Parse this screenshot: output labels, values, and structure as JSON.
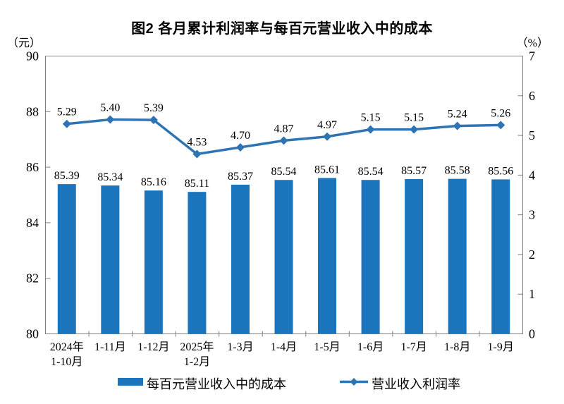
{
  "title": "图2 各月累计利润率与每百元营业收入中的成本",
  "left_axis_unit": "（元）",
  "right_axis_unit": "（%）",
  "chart_data": {
    "type": "bar+line combo",
    "title": "图2 各月累计利润率与每百元营业收入中的成本",
    "categories": [
      [
        "2024年",
        "1-10月"
      ],
      [
        "1-11月"
      ],
      [
        "1-12月"
      ],
      [
        "2025年",
        "1-2月"
      ],
      [
        "1-3月"
      ],
      [
        "1-4月"
      ],
      [
        "1-5月"
      ],
      [
        "1-6月"
      ],
      [
        "1-7月"
      ],
      [
        "1-8月"
      ],
      [
        "1-9月"
      ]
    ],
    "series": [
      {
        "name": "每百元营业收入中的成本",
        "type": "bar",
        "axis": "left",
        "color": "#1B75BC",
        "values": [
          85.39,
          85.34,
          85.16,
          85.11,
          85.37,
          85.54,
          85.61,
          85.54,
          85.57,
          85.58,
          85.56
        ]
      },
      {
        "name": "营业收入利润率",
        "type": "line",
        "axis": "right",
        "color": "#2E74B5",
        "values": [
          5.29,
          5.4,
          5.39,
          4.53,
          4.7,
          4.87,
          4.97,
          5.15,
          5.15,
          5.24,
          5.26
        ]
      }
    ],
    "left_axis": {
      "unit": "（元）",
      "min": 80,
      "max": 90,
      "ticks": [
        90,
        88,
        86,
        84,
        82,
        80
      ]
    },
    "right_axis": {
      "unit": "（%）",
      "min": 0,
      "max": 7,
      "ticks": [
        7,
        6,
        5,
        4,
        3,
        2,
        1,
        0
      ]
    },
    "grid": false,
    "legend_position": "bottom",
    "axis_color": "#808080",
    "label_decimals": 2
  }
}
